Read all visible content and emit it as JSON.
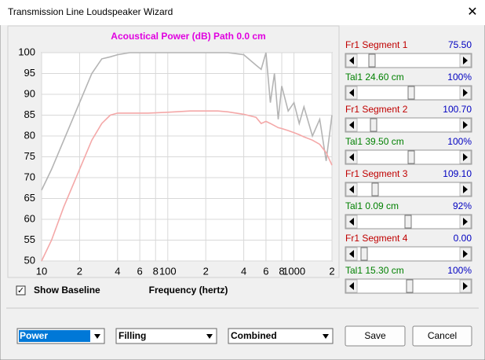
{
  "window": {
    "title": "Transmission Line Loudspeaker Wizard"
  },
  "chart_data": {
    "type": "line",
    "title": "Acoustical Power (dB)   Path 0.0 cm",
    "x_label": "Frequency (hertz)",
    "x": [
      10,
      12,
      15,
      20,
      25,
      30,
      35,
      40,
      50,
      70,
      100,
      150,
      200,
      250,
      300,
      400,
      500,
      550,
      600,
      650,
      700,
      750,
      800,
      900,
      1000,
      1100,
      1200,
      1400,
      1600,
      1800,
      2000
    ],
    "series": [
      {
        "name": "Baseline",
        "color": "#b4b4b4",
        "values": [
          67,
          72,
          79,
          88,
          95,
          98.5,
          99,
          99.5,
          100,
          100,
          100,
          100,
          100,
          100,
          100,
          99.5,
          97,
          96,
          100,
          88,
          95,
          84,
          92,
          86,
          88,
          83,
          87,
          80,
          84,
          74,
          85
        ]
      },
      {
        "name": "Power",
        "color": "#f4a8a8",
        "values": [
          50,
          55,
          63,
          72,
          79,
          83,
          85,
          85.5,
          85.5,
          85.5,
          85.7,
          86,
          86,
          86,
          85.8,
          85.2,
          84.5,
          83,
          83.5,
          83,
          82.5,
          82,
          81.8,
          81.3,
          80.8,
          80.3,
          79.8,
          79,
          78,
          76,
          73
        ]
      }
    ],
    "xlim": [
      10,
      2000
    ],
    "xscale": "log",
    "xticks": [
      10,
      {
        "value": 20,
        "label": "2"
      },
      {
        "value": 40,
        "label": "4"
      },
      {
        "value": 60,
        "label": "6"
      },
      {
        "value": 80,
        "label": "8"
      },
      100,
      {
        "value": 200,
        "label": "2"
      },
      {
        "value": 400,
        "label": "4"
      },
      {
        "value": 600,
        "label": "6"
      },
      {
        "value": 800,
        "label": "8"
      },
      1000,
      {
        "value": 2000,
        "label": "2"
      }
    ],
    "ylim": [
      50,
      100
    ],
    "yticks": [
      50,
      55,
      60,
      65,
      70,
      75,
      80,
      85,
      90,
      95,
      100
    ],
    "grid": true
  },
  "sliders": [
    {
      "label": "Fr1  Segment 1",
      "value": "75.50"
    },
    {
      "label": "Tal1  24.60 cm",
      "value": "100%"
    },
    {
      "label": "Fr1  Segment 2",
      "value": "100.70"
    },
    {
      "label": "Tal1  39.50 cm",
      "value": "100%"
    },
    {
      "label": "Fr1  Segment 3",
      "value": "109.10"
    },
    {
      "label": "Tal1  0.09 cm",
      "value": "92%"
    },
    {
      "label": "Fr1  Segment 4",
      "value": "0.00"
    },
    {
      "label": "Tal1  15.30 cm",
      "value": "100%"
    }
  ],
  "checkbox": {
    "label": "Show Baseline"
  },
  "dropdowns": [
    "Power",
    "Filling",
    "Combined"
  ],
  "buttons": [
    "Save",
    "Cancel"
  ]
}
